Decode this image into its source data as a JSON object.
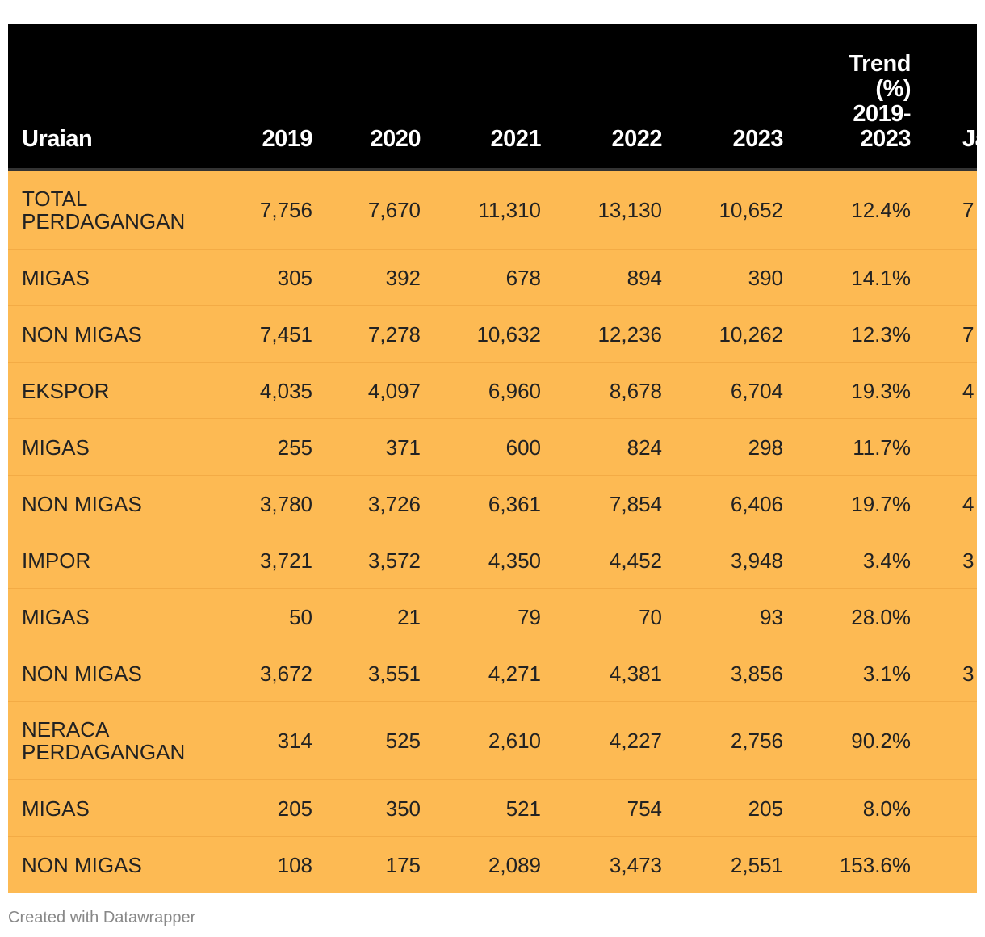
{
  "chart_data": {
    "type": "table",
    "columns": [
      "Uraian",
      "2019",
      "2020",
      "2021",
      "2022",
      "2023",
      "Trend (%) 2019-2023",
      "Ja"
    ],
    "header_extra_visible": "Ja",
    "rows": [
      {
        "label": "TOTAL PERDAGANGAN",
        "values": [
          "7,756",
          "7,670",
          "11,310",
          "13,130",
          "10,652",
          "12.4%"
        ],
        "extra": "7"
      },
      {
        "label": "MIGAS",
        "values": [
          "305",
          "392",
          "678",
          "894",
          "390",
          "14.1%"
        ],
        "extra": ""
      },
      {
        "label": "NON MIGAS",
        "values": [
          "7,451",
          "7,278",
          "10,632",
          "12,236",
          "10,262",
          "12.3%"
        ],
        "extra": "7"
      },
      {
        "label": "EKSPOR",
        "values": [
          "4,035",
          "4,097",
          "6,960",
          "8,678",
          "6,704",
          "19.3%"
        ],
        "extra": "4"
      },
      {
        "label": "MIGAS",
        "values": [
          "255",
          "371",
          "600",
          "824",
          "298",
          "11.7%"
        ],
        "extra": ""
      },
      {
        "label": "NON MIGAS",
        "values": [
          "3,780",
          "3,726",
          "6,361",
          "7,854",
          "6,406",
          "19.7%"
        ],
        "extra": "4"
      },
      {
        "label": "IMPOR",
        "values": [
          "3,721",
          "3,572",
          "4,350",
          "4,452",
          "3,948",
          "3.4%"
        ],
        "extra": "3"
      },
      {
        "label": "MIGAS",
        "values": [
          "50",
          "21",
          "79",
          "70",
          "93",
          "28.0%"
        ],
        "extra": ""
      },
      {
        "label": "NON MIGAS",
        "values": [
          "3,672",
          "3,551",
          "4,271",
          "4,381",
          "3,856",
          "3.1%"
        ],
        "extra": "3"
      },
      {
        "label": "NERACA PERDAGANGAN",
        "values": [
          "314",
          "525",
          "2,610",
          "4,227",
          "2,756",
          "90.2%"
        ],
        "extra": ""
      },
      {
        "label": "MIGAS",
        "values": [
          "205",
          "350",
          "521",
          "754",
          "205",
          "8.0%"
        ],
        "extra": ""
      },
      {
        "label": "NON MIGAS",
        "values": [
          "108",
          "175",
          "2,089",
          "3,473",
          "2,551",
          "153.6%"
        ],
        "extra": ""
      }
    ],
    "colors": {
      "header_bg": "#000000",
      "header_text": "#ffffff",
      "row_bg": "#fdba53",
      "row_text": "#222222"
    }
  },
  "footer": {
    "credit": "Created with Datawrapper"
  }
}
